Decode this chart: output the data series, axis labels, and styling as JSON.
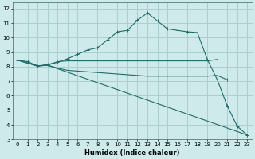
{
  "xlabel": "Humidex (Indice chaleur)",
  "bg_color": "#ceeaea",
  "grid_color": "#aacfcf",
  "line_color": "#1a6e6a",
  "xlim": [
    -0.5,
    23.5
  ],
  "ylim": [
    3,
    12.4
  ],
  "xticks": [
    0,
    1,
    2,
    3,
    4,
    5,
    6,
    7,
    8,
    9,
    10,
    11,
    12,
    13,
    14,
    15,
    16,
    17,
    18,
    19,
    20,
    21,
    22,
    23
  ],
  "yticks": [
    3,
    4,
    5,
    6,
    7,
    8,
    9,
    10,
    11,
    12
  ],
  "curve1_x": [
    0,
    1,
    2,
    3,
    4,
    5,
    6,
    7,
    8,
    9,
    10,
    11,
    12,
    13,
    14,
    15,
    16,
    17,
    18,
    19,
    20,
    21,
    22,
    23
  ],
  "curve1_y": [
    8.45,
    8.35,
    8.05,
    8.15,
    8.3,
    8.55,
    8.85,
    9.15,
    9.3,
    9.85,
    10.4,
    10.5,
    11.2,
    11.7,
    11.15,
    10.6,
    10.5,
    10.4,
    10.35,
    8.5,
    7.1,
    5.3,
    3.9,
    3.3
  ],
  "curve2_x": [
    0,
    2,
    3,
    4,
    5,
    6,
    7,
    8,
    9,
    10,
    11,
    12,
    13,
    14,
    15,
    16,
    17,
    18,
    19,
    20
  ],
  "curve2_y": [
    8.45,
    8.05,
    8.1,
    8.35,
    8.4,
    8.4,
    8.4,
    8.4,
    8.4,
    8.4,
    8.4,
    8.4,
    8.4,
    8.4,
    8.4,
    8.4,
    8.4,
    8.4,
    8.4,
    8.5
  ],
  "curve3_x": [
    0,
    2,
    3,
    4,
    5,
    6,
    7,
    8,
    9,
    10,
    11,
    12,
    13,
    14,
    15,
    16,
    17,
    18,
    19,
    20,
    21
  ],
  "curve3_y": [
    8.45,
    8.05,
    8.1,
    7.9,
    7.75,
    7.7,
    7.65,
    7.6,
    7.55,
    7.5,
    7.45,
    7.4,
    7.35,
    7.35,
    7.35,
    7.35,
    7.35,
    7.35,
    7.35,
    7.4,
    7.1
  ],
  "curve4_x": [
    0,
    2,
    3,
    23
  ],
  "curve4_y": [
    8.45,
    8.05,
    8.1,
    3.3
  ]
}
